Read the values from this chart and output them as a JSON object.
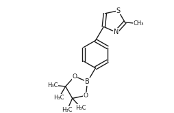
{
  "bg_color": "#ffffff",
  "line_color": "#1a1a1a",
  "line_width": 1.0,
  "font_size": 6.5,
  "fig_width": 2.55,
  "fig_height": 1.66,
  "dpi": 100,
  "xlim": [
    0,
    10
  ],
  "ylim": [
    0,
    6.52
  ]
}
